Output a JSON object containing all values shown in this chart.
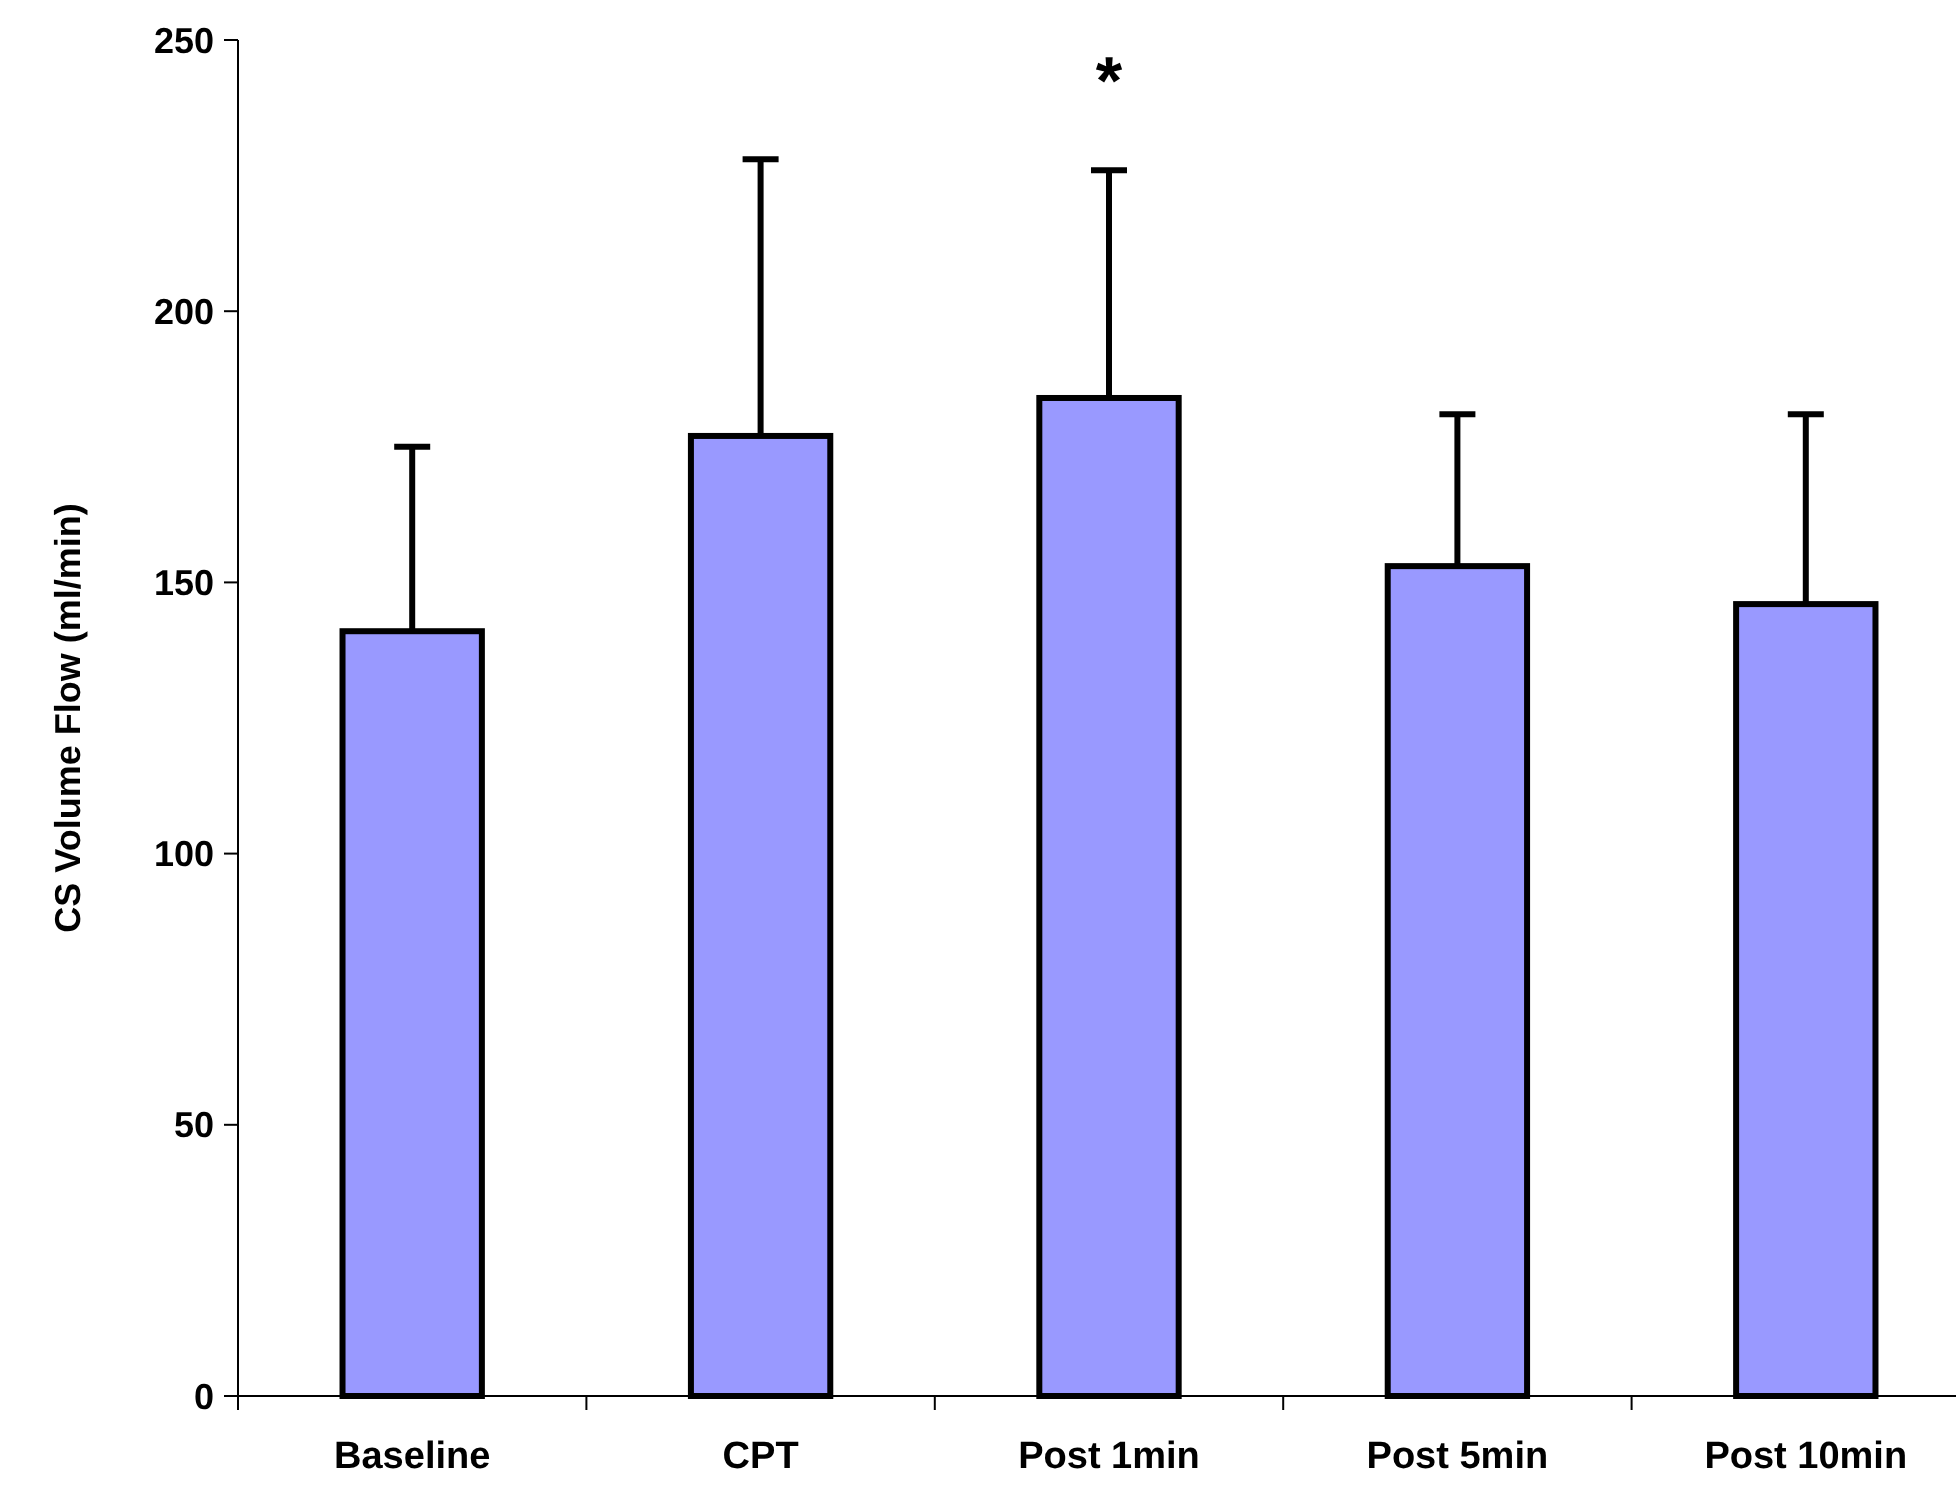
{
  "chart_data": {
    "type": "bar",
    "ylabel": "CS Volume Flow (ml/min)",
    "categories": [
      "Baseline",
      "CPT",
      "Post 1min",
      "Post 5min",
      "Post 10min"
    ],
    "values": [
      141,
      177,
      184,
      153,
      146
    ],
    "errors": [
      [
        141,
        175
      ],
      [
        177,
        228
      ],
      [
        184,
        226
      ],
      [
        153,
        181
      ],
      [
        146,
        181
      ]
    ],
    "color": "#9999ff",
    "ylim": [
      0,
      250
    ],
    "yticks": [
      0,
      50,
      100,
      150,
      200,
      250
    ],
    "grid": false,
    "annotations": [
      "*"
    ]
  }
}
